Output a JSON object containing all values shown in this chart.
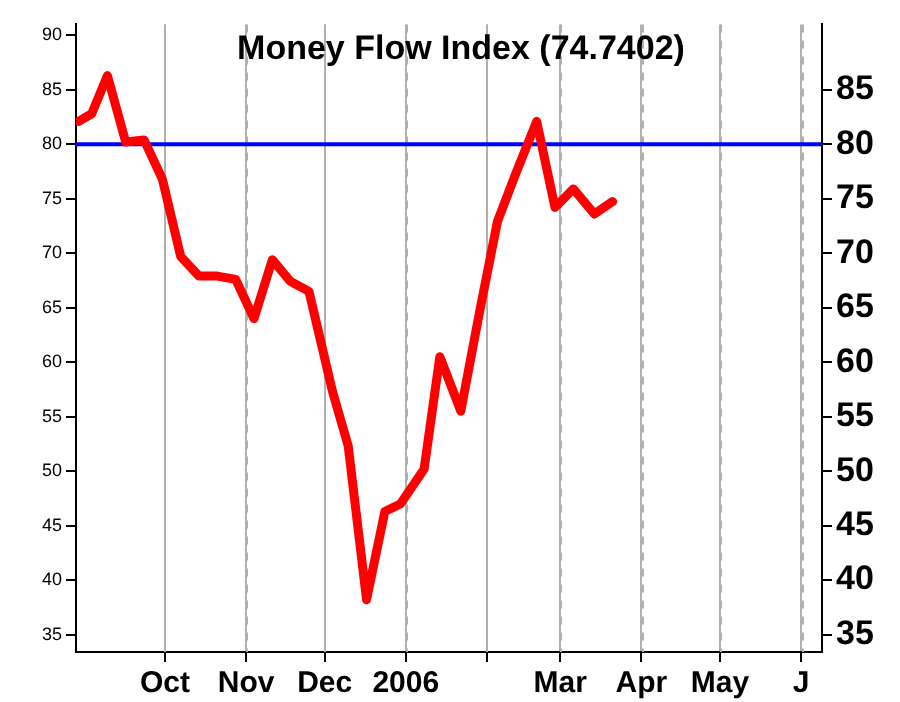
{
  "chart_data": {
    "type": "line",
    "title": "Money Flow Index (74.7402)",
    "x": [
      "2005-08-29",
      "2005-09-03",
      "2005-09-09",
      "2005-09-16",
      "2005-09-23",
      "2005-09-30",
      "2005-10-07",
      "2005-10-14",
      "2005-10-21",
      "2005-10-28",
      "2005-11-04",
      "2005-11-11",
      "2005-11-18",
      "2005-11-25",
      "2005-12-04",
      "2005-12-10",
      "2005-12-17",
      "2005-12-24",
      "2005-12-30",
      "2006-01-08",
      "2006-01-14",
      "2006-01-22",
      "2006-01-29",
      "2006-02-05",
      "2006-02-12",
      "2006-02-20",
      "2006-02-27",
      "2006-03-06",
      "2006-03-14",
      "2006-03-21"
    ],
    "series": [
      {
        "color": "#ff0000",
        "values": [
          82.1,
          82.8,
          86.3,
          80.2,
          80.4,
          76.8,
          69.7,
          67.9,
          67.9,
          67.6,
          64.0,
          69.4,
          67.4,
          66.5,
          57.3,
          52.3,
          38.2,
          46.3,
          47.0,
          50.2,
          60.5,
          55.5,
          64.4,
          72.9,
          77.3,
          82.1,
          74.2,
          75.9,
          73.6,
          74.7402
        ]
      }
    ],
    "xlim": [
      "2005-08-28",
      "2006-06-09"
    ],
    "xticks": [
      {
        "value": "2005-10-01",
        "label": "Oct"
      },
      {
        "value": "2005-11-01",
        "label": "Nov"
      },
      {
        "value": "2005-12-01",
        "label": "Dec"
      },
      {
        "value": "2006-01-01",
        "label": "2006"
      },
      {
        "value": "2006-02-01",
        "label": null
      },
      {
        "value": "2006-03-01",
        "label": "Mar"
      },
      {
        "value": "2006-04-01",
        "label": "Apr"
      },
      {
        "value": "2006-05-01",
        "label": "May"
      },
      {
        "value": "2006-06-01",
        "label": "J"
      }
    ],
    "ylim": [
      33.4,
      91
    ],
    "yticks": [
      35,
      40,
      45,
      50,
      55,
      60,
      65,
      70,
      75,
      80,
      85,
      90
    ],
    "y2lim": [
      33.4,
      91
    ],
    "y2ticks": [
      35,
      40,
      45,
      50,
      55,
      60,
      65,
      70,
      75,
      80,
      85
    ],
    "ref_lines": [
      {
        "axis": "y",
        "value": 80,
        "color": "#0000ff"
      }
    ],
    "grid": "x",
    "legend": false,
    "marker": "none",
    "line_style": "solid"
  }
}
